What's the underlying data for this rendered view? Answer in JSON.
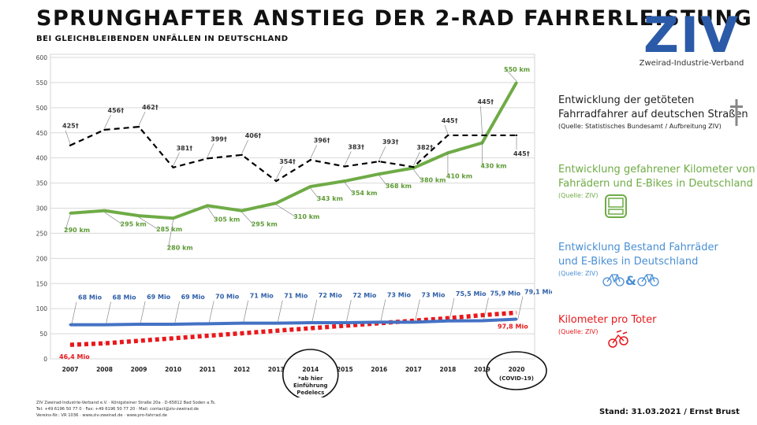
{
  "header": {
    "title": "SPRUNGHAFTER ANSTIEG DER 2-RAD FAHRERLEISTUNG",
    "subtitle": "BEI GLEICHBLEIBENDEN UNFÄLLEN IN DEUTSCHLAND"
  },
  "logo": {
    "text": "ZIV",
    "caption": "Zweirad-Industrie-Verband",
    "color": "#2b5ba8"
  },
  "chart_data": {
    "type": "line",
    "categories": [
      "2007",
      "2008",
      "2009",
      "2010",
      "2011",
      "2012",
      "2013",
      "2014",
      "2015",
      "2016",
      "2017",
      "2018",
      "2019",
      "2020"
    ],
    "category_notes": {
      "2014": [
        "*ab hier",
        "Einführung",
        "Pedelecs"
      ],
      "2020": [
        "(COVID-19)"
      ]
    },
    "ylim": [
      0,
      600
    ],
    "yticks": [
      0,
      50,
      100,
      150,
      200,
      250,
      300,
      350,
      400,
      450,
      500,
      550,
      600
    ],
    "grid": true,
    "series": [
      {
        "key": "deaths",
        "color": "#000000",
        "style": "dashed",
        "values": [
          425,
          456,
          462,
          381,
          399,
          406,
          354,
          396,
          383,
          393,
          382,
          445,
          445,
          445
        ],
        "labels": [
          "425†",
          "456†",
          "462†",
          "381†",
          "399†",
          "406†",
          "354†",
          "396†",
          "383†",
          "393†",
          "382†",
          "445†",
          "445†",
          "445†"
        ]
      },
      {
        "key": "km",
        "color": "#6fab46",
        "style": "solid",
        "values": [
          290,
          295,
          285,
          280,
          305,
          295,
          310,
          343,
          354,
          368,
          380,
          410,
          430,
          550
        ],
        "labels": [
          "290 km",
          "295 km",
          "285 km",
          "280 km",
          "305 km",
          "295 km",
          "310 km",
          "343 km",
          "354 km",
          "368 km",
          "380 km",
          "410 km",
          "430 km",
          "550 km"
        ]
      },
      {
        "key": "stock",
        "color": "#4472c4",
        "style": "solid",
        "values": [
          68,
          68,
          69,
          69,
          70,
          71,
          71,
          72,
          72,
          73,
          73,
          75.5,
          75.9,
          79.1
        ],
        "labels": [
          "68 Mio",
          "68 Mio",
          "69 Mio",
          "69 Mio",
          "70 Mio",
          "71 Mio",
          "71 Mio",
          "72 Mio",
          "72 Mio",
          "73 Mio",
          "73 Mio",
          "75,5 Mio",
          "75,9 Mio",
          "79,1 Mio"
        ]
      },
      {
        "key": "per_death",
        "color": "#e8181b",
        "style": "dotted",
        "values": [
          28,
          31,
          36,
          41,
          46,
          51,
          56,
          61,
          66,
          71,
          76,
          81,
          87,
          92
        ],
        "end_labels": [
          "46,4 Mio",
          "97,8 Mio"
        ]
      }
    ]
  },
  "legend": [
    {
      "key": "deaths",
      "color": "#222222",
      "lines": [
        "Entwicklung der getöteten",
        "Fahrradfahrer auf deutschen Straßen"
      ],
      "source": "(Quelle: Statistisches Bundesamt / Aufbreitung ZIV)",
      "icon": "cross-icon"
    },
    {
      "key": "km",
      "color": "#6fab46",
      "lines": [
        "Entwicklung gefahrener Kilometer von",
        "Fahrädern und E-Bikes in Deutschland"
      ],
      "source": "(Quelle: ZIV)",
      "icon": "bike-computer-icon"
    },
    {
      "key": "stock",
      "color": "#4a8fd4",
      "lines": [
        "Entwicklung Bestand Fahrräder",
        "und E-Bikes in Deutschland"
      ],
      "source": "(Quelle: ZIV)",
      "icon": "bicycles-icon"
    },
    {
      "key": "per_death",
      "color": "#e8181b",
      "lines": [
        "Kilometer pro Toter"
      ],
      "source": "(Quelle: ZIV)",
      "icon": "crash-icon"
    }
  ],
  "footer": {
    "lines": [
      "ZIV Zweirad-Industrie-Verband e.V. · Königsteiner Straße 20a · D-65812 Bad Soden a.Ts.",
      "Tel: +49 6196 50 77 0 · Fax: +49 6196 50 77 20 · Mail: contact@ziv-zweirad.de",
      "Vereins-Nr.: VR 1036 · www.ziv-zweirad.de · www.pro-fahrrad.de"
    ],
    "stand": "Stand: 31.03.2021 / Ernst Brust"
  }
}
